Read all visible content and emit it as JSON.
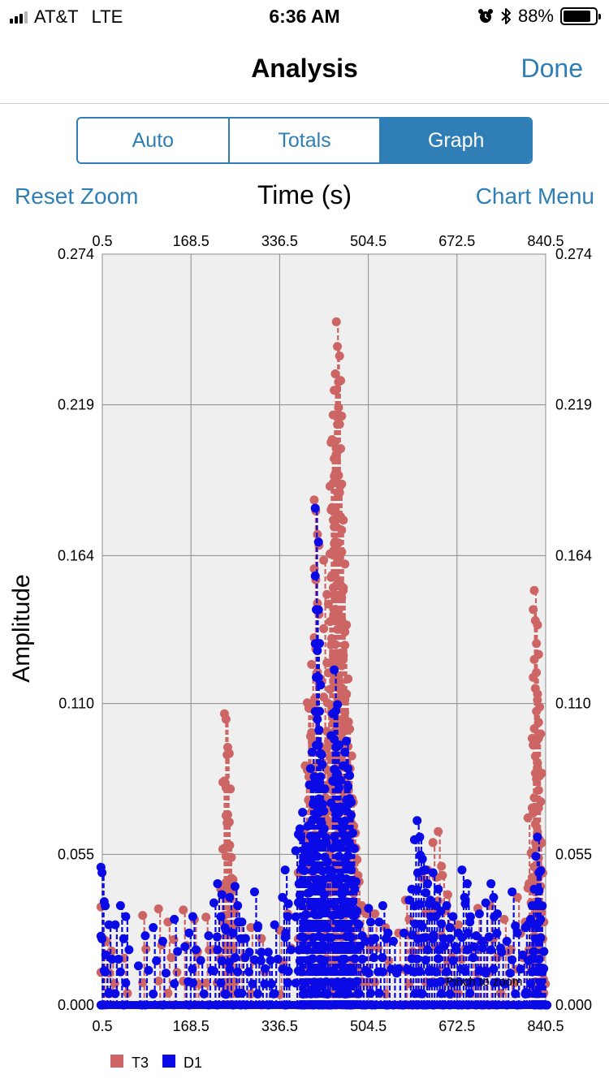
{
  "status_bar": {
    "carrier": "AT&T",
    "network": "LTE",
    "time": "6:36 AM",
    "battery_percent": "88%",
    "battery_level": 0.88,
    "alarm_icon": "alarm-clock-icon",
    "bluetooth_icon": "bluetooth-icon"
  },
  "nav": {
    "title": "Analysis",
    "done_label": "Done"
  },
  "segments": [
    "Auto",
    "Totals",
    "Graph"
  ],
  "selected_segment": "Graph",
  "toolbar": {
    "reset_zoom": "Reset Zoom",
    "chart_menu": "Chart Menu"
  },
  "colors": {
    "accent": "#2f7fb6",
    "t3": "#cd6565",
    "d1": "#0a0ae6",
    "plot_bg": "#efefef",
    "grid": "#8c8c8c"
  },
  "chart_data": {
    "type": "line",
    "title": "Time (s)",
    "xlabel": "Time (s)",
    "ylabel": "Amplitude",
    "x_ticks": [
      "0.5",
      "168.5",
      "336.5",
      "504.5",
      "672.5",
      "840.5"
    ],
    "y_ticks": [
      "0.000",
      "0.055",
      "0.110",
      "0.164",
      "0.219",
      "0.274"
    ],
    "xlim": [
      0.5,
      840.5
    ],
    "ylim": [
      0,
      0.274
    ],
    "grid": true,
    "legend_position": "bottom-left",
    "hint": "Pinch to zoom",
    "series": [
      {
        "name": "T3",
        "color": "#cd6565",
        "points": [
          [
            1,
            0.0358
          ],
          [
            5,
            0.0241
          ],
          [
            11,
            0.0233
          ],
          [
            21,
            0.0197
          ],
          [
            45,
            0.0171
          ],
          [
            80,
            0.0327
          ],
          [
            110,
            0.0351
          ],
          [
            128,
            0.0303
          ],
          [
            139,
            0.0239
          ],
          [
            157,
            0.0347
          ],
          [
            178,
            0.0313
          ],
          [
            183,
            0.0191
          ],
          [
            200,
            0.0321
          ],
          [
            215,
            0.0203
          ],
          [
            228,
            0.0423
          ],
          [
            232,
            0.0813
          ],
          [
            235,
            0.1063
          ],
          [
            238,
            0.1043
          ],
          [
            240,
            0.0913
          ],
          [
            242,
            0.0663
          ],
          [
            245,
            0.0583
          ],
          [
            248,
            0.0463
          ],
          [
            252,
            0.0423
          ],
          [
            265,
            0.0303
          ],
          [
            285,
            0.0283
          ],
          [
            305,
            0.0243
          ],
          [
            340,
            0.0273
          ],
          [
            355,
            0.0333
          ],
          [
            375,
            0.0483
          ],
          [
            383,
            0.0623
          ],
          [
            388,
            0.0873
          ],
          [
            392,
            0.1103
          ],
          [
            395,
            0.1083
          ],
          [
            400,
            0.1243
          ],
          [
            405,
            0.1843
          ],
          [
            408,
            0.1803
          ],
          [
            411,
            0.1313
          ],
          [
            415,
            0.1003
          ],
          [
            420,
            0.0883
          ],
          [
            423,
            0.1623
          ],
          [
            428,
            0.0933
          ],
          [
            430,
            0.1103
          ],
          [
            432,
            0.1463
          ],
          [
            435,
            0.1893
          ],
          [
            437,
            0.2053
          ],
          [
            439,
            0.2063
          ],
          [
            441,
            0.2153
          ],
          [
            443,
            0.2243
          ],
          [
            445,
            0.2303
          ],
          [
            447,
            0.2493
          ],
          [
            449,
            0.2403
          ],
          [
            451,
            0.2273
          ],
          [
            454,
            0.1893
          ],
          [
            457,
            0.1733
          ],
          [
            460,
            0.1513
          ],
          [
            463,
            0.1313
          ],
          [
            466,
            0.1133
          ],
          [
            470,
            0.1033
          ],
          [
            473,
            0.0863
          ],
          [
            477,
            0.0753
          ],
          [
            480,
            0.0653
          ],
          [
            484,
            0.0573
          ],
          [
            488,
            0.0473
          ],
          [
            495,
            0.0363
          ],
          [
            505,
            0.0333
          ],
          [
            520,
            0.0333
          ],
          [
            540,
            0.0283
          ],
          [
            565,
            0.0263
          ],
          [
            578,
            0.0383
          ],
          [
            585,
            0.0313
          ],
          [
            598,
            0.0253
          ],
          [
            610,
            0.0463
          ],
          [
            620,
            0.0493
          ],
          [
            630,
            0.0593
          ],
          [
            640,
            0.0633
          ],
          [
            648,
            0.0473
          ],
          [
            658,
            0.0403
          ],
          [
            666,
            0.0173
          ],
          [
            678,
            0.0293
          ],
          [
            690,
            0.0203
          ],
          [
            704,
            0.0213
          ],
          [
            715,
            0.0353
          ],
          [
            728,
            0.0233
          ],
          [
            738,
            0.0363
          ],
          [
            752,
            0.0173
          ],
          [
            765,
            0.0313
          ],
          [
            778,
            0.0203
          ],
          [
            790,
            0.0393
          ],
          [
            801,
            0.0173
          ],
          [
            805,
            0.0303
          ],
          [
            810,
            0.0683
          ],
          [
            812,
            0.0443
          ],
          [
            816,
            0.0373
          ],
          [
            818,
            0.0973
          ],
          [
            820,
            0.1443
          ],
          [
            822,
            0.1513
          ],
          [
            824,
            0.1403
          ],
          [
            826,
            0.1213
          ],
          [
            828,
            0.1113
          ],
          [
            830,
            0.0973
          ],
          [
            832,
            0.0603
          ],
          [
            834,
            0.0433
          ],
          [
            837,
            0.0193
          ],
          [
            840,
            0.0093
          ]
        ]
      },
      {
        "name": "D1",
        "color": "#0a0ae6",
        "points": [
          [
            1,
            0.0503
          ],
          [
            3,
            0.0483
          ],
          [
            10,
            0.0183
          ],
          [
            16,
            0.0293
          ],
          [
            28,
            0.0293
          ],
          [
            38,
            0.0363
          ],
          [
            48,
            0.0323
          ],
          [
            72,
            0.0143
          ],
          [
            85,
            0.0253
          ],
          [
            100,
            0.0283
          ],
          [
            118,
            0.0233
          ],
          [
            140,
            0.0313
          ],
          [
            160,
            0.0213
          ],
          [
            168,
            0.0263
          ],
          [
            175,
            0.0323
          ],
          [
            190,
            0.0163
          ],
          [
            205,
            0.0253
          ],
          [
            215,
            0.0373
          ],
          [
            222,
            0.0443
          ],
          [
            230,
            0.0403
          ],
          [
            238,
            0.0273
          ],
          [
            245,
            0.0393
          ],
          [
            255,
            0.0433
          ],
          [
            260,
            0.0363
          ],
          [
            268,
            0.0303
          ],
          [
            275,
            0.0243
          ],
          [
            282,
            0.0193
          ],
          [
            292,
            0.0413
          ],
          [
            298,
            0.0283
          ],
          [
            305,
            0.0193
          ],
          [
            312,
            0.0133
          ],
          [
            318,
            0.0193
          ],
          [
            322,
            0.0163
          ],
          [
            330,
            0.0293
          ],
          [
            345,
            0.0393
          ],
          [
            350,
            0.0493
          ],
          [
            355,
            0.0323
          ],
          [
            370,
            0.0563
          ],
          [
            375,
            0.0623
          ],
          [
            378,
            0.0643
          ],
          [
            380,
            0.0613
          ],
          [
            383,
            0.0703
          ],
          [
            386,
            0.0563
          ],
          [
            390,
            0.0533
          ],
          [
            393,
            0.0653
          ],
          [
            396,
            0.0803
          ],
          [
            398,
            0.0863
          ],
          [
            401,
            0.0923
          ],
          [
            403,
            0.0733
          ],
          [
            405,
            0.0833
          ],
          [
            407,
            0.1813
          ],
          [
            409,
            0.1443
          ],
          [
            411,
            0.1293
          ],
          [
            414,
            0.1003
          ],
          [
            417,
            0.0833
          ],
          [
            419,
            0.0913
          ],
          [
            421,
            0.0733
          ],
          [
            424,
            0.0643
          ],
          [
            428,
            0.0593
          ],
          [
            432,
            0.0493
          ],
          [
            437,
            0.0983
          ],
          [
            440,
            0.1063
          ],
          [
            443,
            0.1223
          ],
          [
            446,
            0.1073
          ],
          [
            449,
            0.0943
          ],
          [
            452,
            0.0793
          ],
          [
            455,
            0.0723
          ],
          [
            458,
            0.0643
          ],
          [
            460,
            0.0873
          ],
          [
            463,
            0.0923
          ],
          [
            466,
            0.0963
          ],
          [
            469,
            0.0863
          ],
          [
            472,
            0.0753
          ],
          [
            475,
            0.0693
          ],
          [
            478,
            0.0573
          ],
          [
            482,
            0.0423
          ],
          [
            486,
            0.0343
          ],
          [
            490,
            0.0293
          ],
          [
            496,
            0.0253
          ],
          [
            502,
            0.0233
          ],
          [
            508,
            0.0353
          ],
          [
            512,
            0.0303
          ],
          [
            520,
            0.0243
          ],
          [
            528,
            0.0303
          ],
          [
            535,
            0.0363
          ],
          [
            545,
            0.0263
          ],
          [
            555,
            0.0233
          ],
          [
            565,
            0.0133
          ],
          [
            575,
            0.0263
          ],
          [
            585,
            0.0383
          ],
          [
            590,
            0.0423
          ],
          [
            595,
            0.0603
          ],
          [
            600,
            0.0673
          ],
          [
            605,
            0.0613
          ],
          [
            610,
            0.0533
          ],
          [
            616,
            0.0493
          ],
          [
            620,
            0.0443
          ],
          [
            625,
            0.0383
          ],
          [
            630,
            0.0483
          ],
          [
            635,
            0.0323
          ],
          [
            640,
            0.0423
          ],
          [
            645,
            0.0343
          ],
          [
            650,
            0.0243
          ],
          [
            656,
            0.0363
          ],
          [
            662,
            0.0283
          ],
          [
            668,
            0.0323
          ],
          [
            673,
            0.0213
          ],
          [
            678,
            0.0263
          ],
          [
            685,
            0.0493
          ],
          [
            690,
            0.0393
          ],
          [
            695,
            0.0443
          ],
          [
            700,
            0.0303
          ],
          [
            708,
            0.0213
          ],
          [
            712,
            0.0253
          ],
          [
            718,
            0.0333
          ],
          [
            724,
            0.0233
          ],
          [
            730,
            0.0373
          ],
          [
            740,
            0.0443
          ],
          [
            745,
            0.0393
          ],
          [
            752,
            0.0333
          ],
          [
            760,
            0.0193
          ],
          [
            770,
            0.0233
          ],
          [
            780,
            0.0413
          ],
          [
            790,
            0.0263
          ],
          [
            800,
            0.0183
          ],
          [
            805,
            0.0283
          ],
          [
            810,
            0.0293
          ],
          [
            815,
            0.0313
          ],
          [
            818,
            0.0363
          ],
          [
            822,
            0.0423
          ],
          [
            825,
            0.0543
          ],
          [
            828,
            0.0613
          ],
          [
            831,
            0.0483
          ],
          [
            834,
            0.0313
          ],
          [
            837,
            0.0133
          ],
          [
            840,
            0.0133
          ]
        ]
      }
    ]
  }
}
